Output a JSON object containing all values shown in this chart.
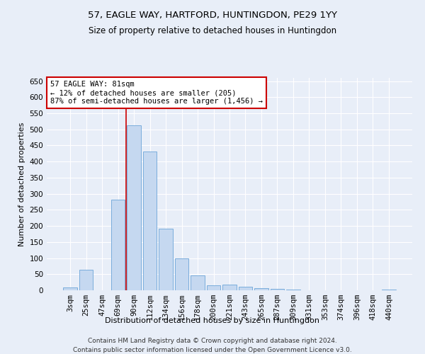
{
  "title": "57, EAGLE WAY, HARTFORD, HUNTINGDON, PE29 1YY",
  "subtitle": "Size of property relative to detached houses in Huntingdon",
  "xlabel": "Distribution of detached houses by size in Huntingdon",
  "ylabel": "Number of detached properties",
  "categories": [
    "3sqm",
    "25sqm",
    "47sqm",
    "69sqm",
    "90sqm",
    "112sqm",
    "134sqm",
    "156sqm",
    "178sqm",
    "200sqm",
    "221sqm",
    "243sqm",
    "265sqm",
    "287sqm",
    "309sqm",
    "331sqm",
    "353sqm",
    "374sqm",
    "396sqm",
    "418sqm",
    "440sqm"
  ],
  "values": [
    8,
    63,
    0,
    282,
    512,
    432,
    191,
    100,
    47,
    15,
    17,
    10,
    7,
    4,
    2,
    0,
    1,
    0,
    0,
    0,
    2
  ],
  "bar_color": "#c5d8f0",
  "bar_edge_color": "#7aaddc",
  "property_line_x": 3.5,
  "annotation_line1": "57 EAGLE WAY: 81sqm",
  "annotation_line2": "← 12% of detached houses are smaller (205)",
  "annotation_line3": "87% of semi-detached houses are larger (1,456) →",
  "annotation_box_color": "#ffffff",
  "annotation_box_edge_color": "#cc0000",
  "ylim": [
    0,
    660
  ],
  "yticks": [
    0,
    50,
    100,
    150,
    200,
    250,
    300,
    350,
    400,
    450,
    500,
    550,
    600,
    650
  ],
  "footer1": "Contains HM Land Registry data © Crown copyright and database right 2024.",
  "footer2": "Contains public sector information licensed under the Open Government Licence v3.0.",
  "title_fontsize": 9.5,
  "subtitle_fontsize": 8.5,
  "axis_label_fontsize": 8,
  "tick_fontsize": 7.5,
  "annotation_fontsize": 7.5,
  "footer_fontsize": 6.5,
  "bg_color": "#e8eef8",
  "plot_bg_color": "#e8eef8",
  "grid_color": "#ffffff",
  "property_line_color": "#cc0000"
}
